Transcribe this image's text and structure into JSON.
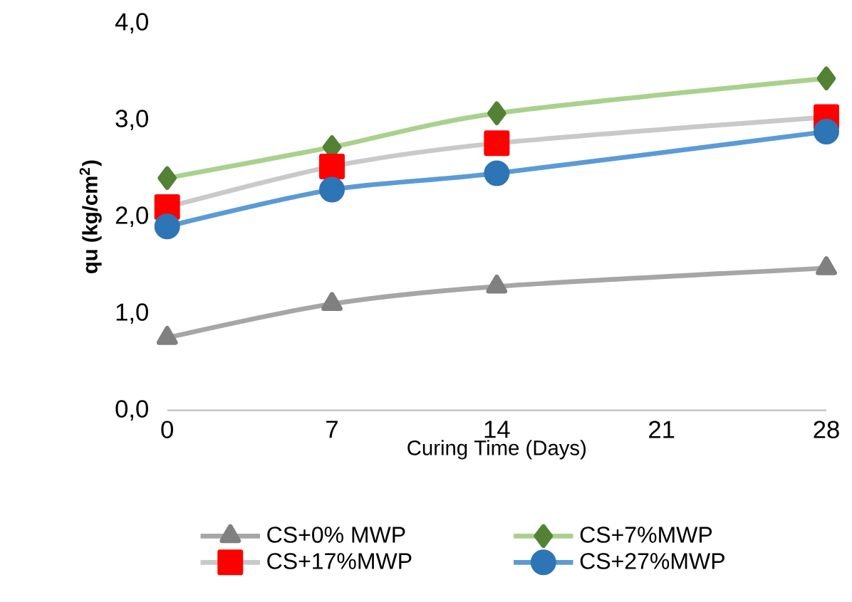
{
  "chart_data": {
    "type": "line",
    "xlabel": "Curing Time (Days)",
    "ylabel": "qu (kg/cm$^{2}$)",
    "x": [
      0,
      7,
      14,
      28
    ],
    "xlim": [
      0,
      28
    ],
    "xticks": [
      0,
      7,
      14,
      21,
      28
    ],
    "ylim": [
      0,
      4
    ],
    "yticks": [
      {
        "value": 0,
        "label": "0,0"
      },
      {
        "value": 1,
        "label": "1,0"
      },
      {
        "value": 2,
        "label": "2,0"
      },
      {
        "value": 3,
        "label": "3,0"
      },
      {
        "value": 4,
        "label": "4,0"
      }
    ],
    "grid": false,
    "legend": "bottom",
    "series": [
      {
        "name": "CS+0% MWP",
        "color": "#a6a6a6",
        "colors": [
          "#808080",
          "#808080",
          "#808080",
          "#808080"
        ],
        "marker": "triangle",
        "values": [
          0.75,
          1.1,
          1.28,
          1.47
        ]
      },
      {
        "name": "CS+7%MWP",
        "color": "#a9d18e",
        "colors": [
          "#548235",
          "#548235",
          "#548235",
          "#548235"
        ],
        "marker": "diamond",
        "values": [
          2.4,
          2.72,
          3.07,
          3.43
        ]
      },
      {
        "name": "CS+17%MWP",
        "color": "#c9c9c9",
        "colors": [
          "#ff0000",
          "#ff0000",
          "#ff0000",
          "#ff0000"
        ],
        "marker": "square",
        "values": [
          2.1,
          2.52,
          2.76,
          3.03
        ]
      },
      {
        "name": "CS+27%MWP",
        "color": "#5b9bd5",
        "colors": [
          "#2e75b6",
          "#2e75b6",
          "#2e75b6",
          "#2e75b6"
        ],
        "marker": "circle",
        "values": [
          1.9,
          2.28,
          2.45,
          2.88
        ]
      }
    ]
  }
}
